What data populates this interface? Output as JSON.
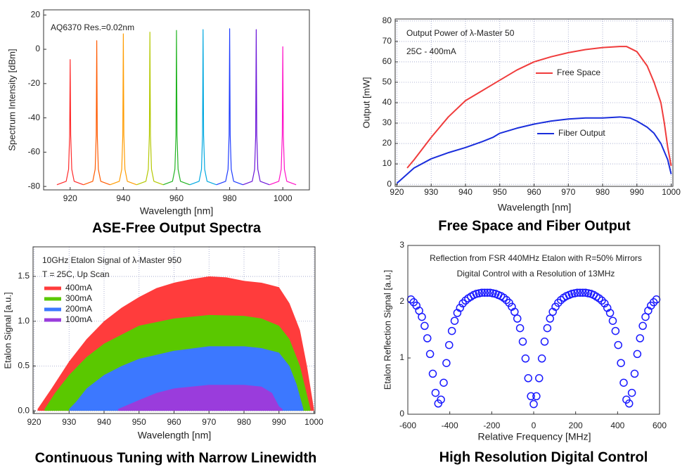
{
  "chart_data": [
    {
      "type": "line",
      "caption": "ASE-Free Output Spectra",
      "xlabel": "Wavelength [nm]",
      "ylabel": "Spectrum Intensity [dBm]",
      "annotations": [
        "AQ6370 Res.=0.02nm"
      ],
      "xlim": [
        910,
        1010
      ],
      "xticks": [
        920,
        940,
        960,
        980,
        1000
      ],
      "ylim": [
        -82,
        23
      ],
      "yticks": [
        -80,
        -60,
        -40,
        -20,
        0,
        20
      ],
      "grid": false,
      "legend": false,
      "series": [
        {
          "color": "#ff2a2a",
          "x": [
            915,
            918.5,
            919.4,
            919.8,
            920,
            920.2,
            920.6,
            921.5,
            925
          ],
          "values": [
            -79,
            -77,
            -70,
            -50,
            -6,
            -50,
            -70,
            -77,
            -79
          ]
        },
        {
          "color": "#ff5a00",
          "x": [
            925,
            928.5,
            929.4,
            929.8,
            930,
            930.2,
            930.6,
            931.5,
            935
          ],
          "values": [
            -79,
            -77,
            -70,
            -50,
            5,
            -50,
            -70,
            -77,
            -79
          ]
        },
        {
          "color": "#ff9c00",
          "x": [
            935,
            938.5,
            939.4,
            939.8,
            940,
            940.2,
            940.6,
            941.5,
            945
          ],
          "values": [
            -79,
            -77,
            -70,
            -50,
            9,
            -50,
            -70,
            -77,
            -79
          ]
        },
        {
          "color": "#b4c800",
          "x": [
            945,
            948.5,
            949.4,
            949.8,
            950,
            950.2,
            950.6,
            951.5,
            955
          ],
          "values": [
            -79,
            -77,
            -70,
            -50,
            10,
            -50,
            -70,
            -77,
            -79
          ]
        },
        {
          "color": "#22b422",
          "x": [
            955,
            958.5,
            959.4,
            959.8,
            960,
            960.2,
            960.6,
            961.5,
            965
          ],
          "values": [
            -79,
            -77,
            -70,
            -50,
            11,
            -50,
            -70,
            -77,
            -79
          ]
        },
        {
          "color": "#00a8e0",
          "x": [
            965,
            968.5,
            969.4,
            969.8,
            970,
            970.2,
            970.6,
            971.5,
            975
          ],
          "values": [
            -79,
            -77,
            -70,
            -50,
            11.5,
            -50,
            -70,
            -77,
            -79
          ]
        },
        {
          "color": "#1e3cff",
          "x": [
            975,
            978.5,
            979.4,
            979.8,
            980,
            980.2,
            980.6,
            981.5,
            985
          ],
          "values": [
            -79,
            -77,
            -70,
            -50,
            12,
            -50,
            -70,
            -77,
            -79
          ]
        },
        {
          "color": "#6a14d8",
          "x": [
            985,
            988.5,
            989.4,
            989.8,
            990,
            990.2,
            990.6,
            991.5,
            995
          ],
          "values": [
            -79,
            -77,
            -70,
            -50,
            11.5,
            -50,
            -70,
            -77,
            -79
          ]
        },
        {
          "color": "#ff10c8",
          "x": [
            995,
            998.5,
            999.4,
            999.8,
            1000,
            1000.2,
            1000.6,
            1001.5,
            1005
          ],
          "values": [
            -79,
            -77,
            -70,
            -50,
            1.5,
            -50,
            -70,
            -77,
            -79
          ]
        }
      ]
    },
    {
      "type": "line",
      "caption": "Free Space and Fiber Output",
      "xlabel": "Wavelength [nm]",
      "ylabel": "Output [mW]",
      "annotations": [
        "Output Power of  λ-Master 50",
        "25C - 400mA"
      ],
      "xlim": [
        919.5,
        1000.5
      ],
      "xticks": [
        920,
        930,
        940,
        950,
        960,
        970,
        980,
        990,
        1000
      ],
      "ylim": [
        -1,
        81
      ],
      "yticks": [
        0,
        10,
        20,
        30,
        40,
        50,
        60,
        70,
        80
      ],
      "grid": true,
      "legend": true,
      "series": [
        {
          "name": "Free Space",
          "color": "#f03c3c",
          "x": [
            923,
            925,
            930,
            935,
            940,
            945,
            950,
            955,
            960,
            965,
            970,
            975,
            980,
            985,
            987,
            990,
            993,
            995,
            997,
            998,
            999,
            1000
          ],
          "values": [
            8,
            12,
            23,
            33,
            41,
            46,
            51,
            56,
            60,
            62.5,
            64.5,
            66,
            67,
            67.5,
            67.5,
            65,
            58,
            50,
            40,
            30,
            18,
            9
          ]
        },
        {
          "name": "Fiber Output",
          "color": "#1a2edc",
          "x": [
            920,
            923,
            925,
            930,
            935,
            940,
            945,
            948,
            950,
            955,
            960,
            965,
            970,
            975,
            980,
            985,
            988,
            990,
            993,
            995,
            997,
            999,
            1000
          ],
          "values": [
            0.5,
            5,
            8,
            12.5,
            15.5,
            18,
            21,
            23,
            25,
            27.5,
            29.5,
            31,
            32,
            32.5,
            32.5,
            33,
            32.5,
            31,
            28,
            25,
            20,
            12,
            5
          ]
        }
      ]
    },
    {
      "type": "area",
      "caption": "Continuous Tuning with Narrow Linewidth",
      "xlabel": "Wavelength [nm]",
      "ylabel": "Etalon Signal [a.u.]",
      "annotations": [
        "10GHz Etalon Signal of  λ-Master 950",
        "T = 25C, Up Scan"
      ],
      "xlim": [
        919.7,
        1000.3
      ],
      "xticks": [
        920,
        930,
        940,
        950,
        960,
        970,
        980,
        990,
        1000
      ],
      "ylim": [
        -0.03,
        1.83
      ],
      "yticks": [
        {
          "value": 0,
          "label": "0.0"
        },
        0.5,
        {
          "value": 1,
          "label": "1.0"
        },
        1.5
      ],
      "grid": true,
      "legend": true,
      "series": [
        {
          "name": "400mA",
          "color": "#ff3c3c",
          "x": [
            921,
            925,
            930,
            935,
            940,
            945,
            950,
            955,
            960,
            965,
            970,
            975,
            980,
            985,
            990,
            993,
            996,
            998,
            1000
          ],
          "values": [
            0.02,
            0.25,
            0.55,
            0.8,
            1.0,
            1.15,
            1.27,
            1.37,
            1.43,
            1.47,
            1.5,
            1.49,
            1.45,
            1.43,
            1.38,
            1.2,
            0.9,
            0.5,
            0.02
          ]
        },
        {
          "name": "300mA",
          "color": "#5ac800",
          "x": [
            923,
            926,
            930,
            935,
            940,
            945,
            950,
            960,
            970,
            980,
            985,
            990,
            993,
            996,
            999
          ],
          "values": [
            0.02,
            0.2,
            0.4,
            0.6,
            0.75,
            0.85,
            0.95,
            1.03,
            1.07,
            1.06,
            1.03,
            0.95,
            0.8,
            0.5,
            0.02
          ]
        },
        {
          "name": "200mA",
          "color": "#3c78ff",
          "x": [
            930,
            932,
            935,
            940,
            945,
            950,
            960,
            970,
            980,
            985,
            990,
            993,
            995,
            997
          ],
          "values": [
            0.02,
            0.1,
            0.25,
            0.4,
            0.5,
            0.58,
            0.67,
            0.72,
            0.72,
            0.7,
            0.65,
            0.5,
            0.3,
            0.02
          ]
        },
        {
          "name": "100mA",
          "color": "#9a3cdc",
          "x": [
            944,
            950,
            955,
            960,
            970,
            980,
            985,
            988,
            990,
            991
          ],
          "values": [
            0.02,
            0.12,
            0.2,
            0.25,
            0.29,
            0.29,
            0.27,
            0.2,
            0.05,
            0.02
          ]
        }
      ]
    },
    {
      "type": "scatter",
      "caption": "High Resolution  Digital Control",
      "xlabel": "Relative Frequency [MHz]",
      "ylabel": "Etalon Reflection Signal [a.u.]",
      "annotations": [
        "Reflection from FSR 440MHz Etalon with  R=50% Mirrors",
        "Digital Control with a Resolution of 13MHz"
      ],
      "xlim": [
        -600,
        600
      ],
      "xticks": [
        -600,
        -400,
        -200,
        0,
        200,
        400,
        600
      ],
      "ylim": [
        0,
        3
      ],
      "yticks": [
        0,
        1,
        2,
        3
      ],
      "grid": false,
      "legend": false,
      "series": [
        {
          "color": "#1a1aff",
          "x": [
            -585,
            -572,
            -559,
            -546,
            -533,
            -520,
            -507,
            -494,
            -481,
            -468,
            -455,
            -442,
            -429,
            -416,
            -403,
            -390,
            -377,
            -364,
            -351,
            -338,
            -325,
            -312,
            -299,
            -286,
            -273,
            -260,
            -247,
            -234,
            -221,
            -208,
            -195,
            -182,
            -169,
            -156,
            -143,
            -130,
            -117,
            -104,
            -91,
            -78,
            -65,
            -52,
            -39,
            -26,
            -13,
            0,
            13,
            26,
            39,
            52,
            65,
            78,
            91,
            104,
            117,
            130,
            143,
            156,
            169,
            182,
            195,
            208,
            221,
            234,
            247,
            260,
            273,
            286,
            299,
            312,
            325,
            338,
            351,
            364,
            377,
            390,
            403,
            416,
            429,
            442,
            455,
            468,
            481,
            494,
            507,
            520,
            533,
            546,
            559,
            572,
            585
          ],
          "values": [
            2.04,
            1.99,
            1.93,
            1.84,
            1.73,
            1.57,
            1.35,
            1.07,
            0.72,
            0.38,
            0.19,
            0.26,
            0.56,
            0.91,
            1.23,
            1.48,
            1.66,
            1.8,
            1.89,
            1.97,
            2.02,
            2.06,
            2.09,
            2.12,
            2.14,
            2.15,
            2.16,
            2.16,
            2.16,
            2.16,
            2.15,
            2.14,
            2.12,
            2.1,
            2.07,
            2.03,
            1.98,
            1.91,
            1.82,
            1.7,
            1.53,
            1.29,
            0.99,
            0.64,
            0.32,
            0.18,
            0.32,
            0.64,
            0.99,
            1.29,
            1.53,
            1.7,
            1.82,
            1.91,
            1.98,
            2.03,
            2.07,
            2.1,
            2.12,
            2.14,
            2.15,
            2.16,
            2.16,
            2.16,
            2.16,
            2.15,
            2.14,
            2.12,
            2.09,
            2.06,
            2.02,
            1.97,
            1.89,
            1.8,
            1.66,
            1.48,
            1.23,
            0.91,
            0.56,
            0.26,
            0.19,
            0.38,
            0.72,
            1.07,
            1.35,
            1.57,
            1.73,
            1.84,
            1.93,
            1.99,
            2.04
          ]
        }
      ]
    }
  ]
}
